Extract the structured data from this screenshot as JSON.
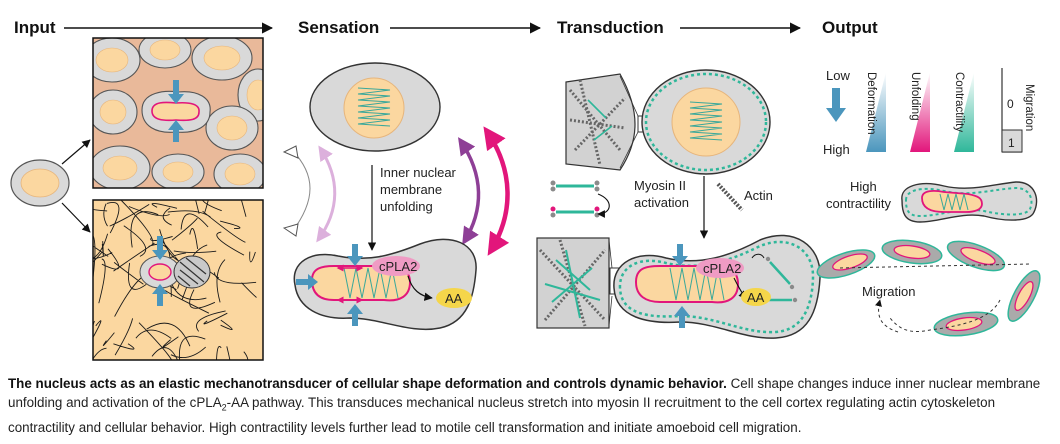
{
  "headers": {
    "input": "Input",
    "sensation": "Sensation",
    "transduction": "Transduction",
    "output": "Output"
  },
  "labels": {
    "inm_line1": "Inner nuclear",
    "inm_line2": "membrane",
    "inm_line3": "unfolding",
    "cpla2": "cPLA2",
    "aa": "AA",
    "myosin_line1": "Myosin II",
    "myosin_line2": "activation",
    "actin": "Actin",
    "high_contr_line1": "High",
    "high_contr_line2": "contractility",
    "migration": "Migration"
  },
  "legend": {
    "low": "Low",
    "high": "High",
    "deformation": "Deformation",
    "unfolding": "Unfolding",
    "contractility": "Contractility",
    "migration": "Migration",
    "val0": "0",
    "val1": "1"
  },
  "colors": {
    "nucleus": "#fbd7a0",
    "cell": "#d9d9d9",
    "membrane": "#e2167b",
    "arrow_blue": "#4b96bd",
    "myosin": "#2fb79a",
    "aa": "#f5d64a",
    "cpla2": "#ef9bc4",
    "purple": "#8e3f96",
    "ecm": "#e9b99a"
  },
  "caption": {
    "title": "The nucleus acts as an elastic mechanotransducer of cellular shape deformation and controls dynamic behavior.",
    "body_1": " Cell shape changes induce inner nuclear membrane unfolding and activation of the cPLA",
    "sub": "2",
    "body_2": "-AA pathway. This transduces mechanical nucleus stretch into myosin II recruitment to the cell cortex regulating actin cytoskeleton contractility and cellular behavior. High contractility levels further lead to motile cell transformation and initiate amoeboid cell migration."
  }
}
